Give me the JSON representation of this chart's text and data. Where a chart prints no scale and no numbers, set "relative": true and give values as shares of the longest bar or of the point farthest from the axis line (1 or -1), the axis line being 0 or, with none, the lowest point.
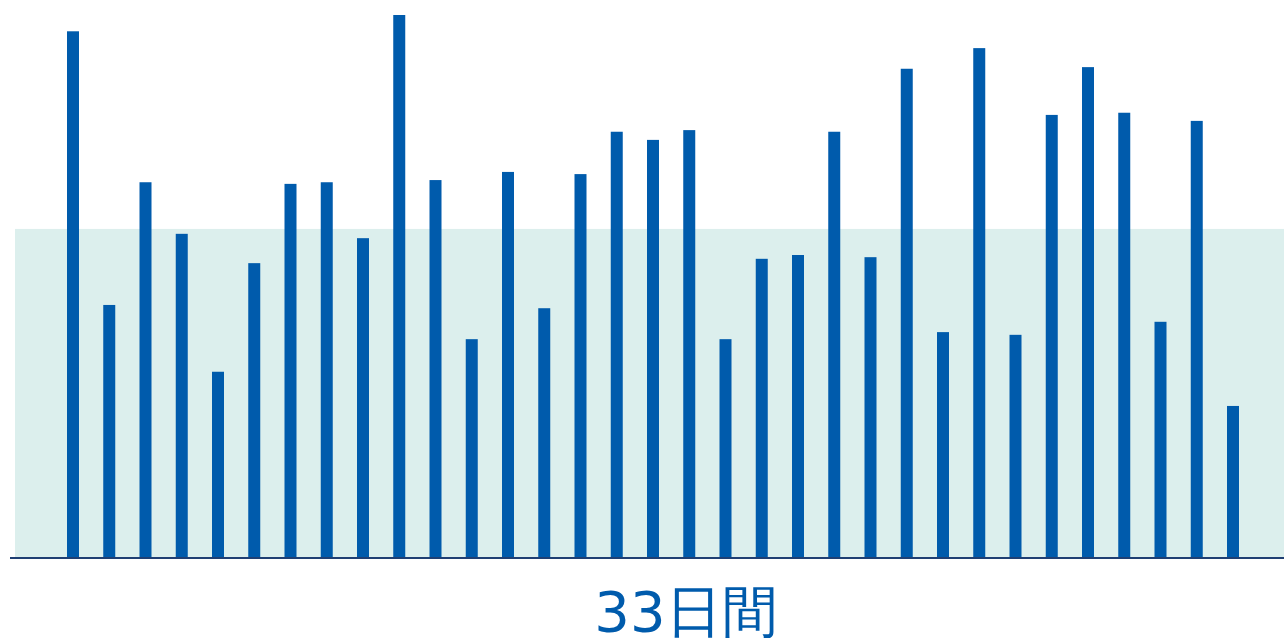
{
  "chart_data": {
    "type": "bar",
    "relative": true,
    "xlabel": "33日間",
    "categories": [
      null,
      null,
      null,
      null,
      null,
      null,
      null,
      null,
      null,
      null,
      null,
      null,
      null,
      null,
      null,
      null,
      null,
      null,
      null,
      null,
      null,
      null,
      null,
      null,
      null,
      null,
      null,
      null,
      null,
      null,
      null,
      null,
      null
    ],
    "values": [
      0.97,
      0.466,
      0.692,
      0.597,
      0.343,
      0.543,
      0.689,
      0.692,
      0.589,
      1,
      0.696,
      0.403,
      0.711,
      0.46,
      0.707,
      0.785,
      0.77,
      0.788,
      0.403,
      0.551,
      0.558,
      0.785,
      0.554,
      0.901,
      0.416,
      0.939,
      0.411,
      0.816,
      0.904,
      0.82,
      0.435,
      0.805,
      0.28
    ],
    "color": "#005bac",
    "bands": [
      {
        "axis": "y",
        "from": 0,
        "to": 0.606,
        "color": "#dcefed"
      }
    ]
  }
}
